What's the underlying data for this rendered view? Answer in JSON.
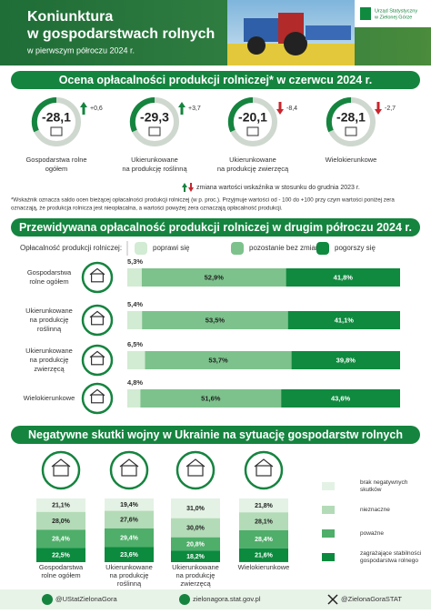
{
  "header": {
    "title_lines": [
      "Koniunktura",
      "w gospodarstwach rolnych"
    ],
    "subtitle": "w pierwszym półroczu 2024 r.",
    "logo_lines": [
      "Urząd Statystyczny",
      "w Zielonej Górze"
    ]
  },
  "assessment": {
    "title": "Ocena opłacalności produkcji rolniczej* w czerwcu 2024 r.",
    "items": [
      {
        "value": "-28,1",
        "change": "+0,6",
        "direction": "up",
        "label": [
          "Gospodarstwa rolne",
          "ogółem"
        ]
      },
      {
        "value": "-29,3",
        "change": "+3,7",
        "direction": "up",
        "label": [
          "Ukierunkowane",
          "na produkcję roślinną"
        ]
      },
      {
        "value": "-20,1",
        "change": "-8,4",
        "direction": "down",
        "label": [
          "Ukierunkowane",
          "na produkcję zwierzęcą"
        ]
      },
      {
        "value": "-28,1",
        "change": "-2,7",
        "direction": "down",
        "label": [
          "Wielokierunkowe"
        ]
      }
    ],
    "legend": "zmiana wartości wskaźnika w stosunku do grudnia 2023 r.",
    "footnote": [
      "*Wskaźnik oznacza saldo ocen bieżącej opłacalności produkcji rolniczej (w p. proc.). Przyjmuje wartości od - 100 do +100 przy czym wartości poniżej zera",
      "oznaczają, że produkcja rolnicza jest nieopłacalna, a wartości powyżej zera oznaczają opłacalność produkcji."
    ]
  },
  "forecast": {
    "title": "Przewidywana opłacalność produkcji rolniczej w drugim półroczu 2024 r.",
    "legend_title": "Opłacalność produkcji rolniczej:",
    "categories": [
      [
        "Gospodarstwa",
        "rolne ogółem"
      ],
      [
        "Ukierunkowane",
        "na produkcję",
        "roślinną"
      ],
      [
        "Ukierunkowane",
        "na produkcję",
        "zwierzęcą"
      ],
      [
        "Wielokierunkowe"
      ]
    ],
    "series": [
      {
        "name": "poprawi się",
        "color": "#d2ebd3",
        "values": [
          5.3,
          5.4,
          6.5,
          4.8
        ],
        "value_labels": [
          "5,3%",
          "5,4%",
          "6,5%",
          "4,8%"
        ]
      },
      {
        "name": "pozostanie bez zmian",
        "color": "#7dc28c",
        "values": [
          52.9,
          53.5,
          53.7,
          51.6
        ],
        "value_labels": [
          "52,9%",
          "53,5%",
          "53,7%",
          "51,6%"
        ]
      },
      {
        "name": "pogorszy się",
        "color": "#0f8a3f",
        "values": [
          41.8,
          41.1,
          39.8,
          43.6
        ],
        "value_labels": [
          "41,8%",
          "41,1%",
          "39,8%",
          "43,6%"
        ]
      }
    ]
  },
  "war": {
    "title": "Negatywne skutki wojny w Ukrainie na sytuację gospodarstw rolnych",
    "categories": [
      [
        "Gospodarstwa",
        "rolne ogółem"
      ],
      [
        "Ukierunkowane",
        "na produkcję",
        "roślinną"
      ],
      [
        "Ukierunkowane",
        "na produkcję",
        "zwierzęcą"
      ],
      [
        "Wielokierunkowe"
      ]
    ],
    "series": [
      {
        "name": [
          "brak negatywnych",
          "skutków"
        ],
        "color": "#e4f2e5",
        "values": [
          21.1,
          19.4,
          31.0,
          21.8
        ],
        "value_labels": [
          "21,1%",
          "19,4%",
          "31,0%",
          "21,8%"
        ]
      },
      {
        "name": [
          "nieznaczne"
        ],
        "color": "#b3dbb7",
        "values": [
          28.0,
          27.6,
          30.0,
          28.1
        ],
        "value_labels": [
          "28,0%",
          "27,6%",
          "30,0%",
          "28,1%"
        ]
      },
      {
        "name": [
          "poważne"
        ],
        "color": "#4fae6a",
        "values": [
          28.4,
          29.4,
          20.8,
          28.4
        ],
        "value_labels": [
          "28,4%",
          "29,4%",
          "20,8%",
          "28,4%"
        ]
      },
      {
        "name": [
          "zagrażające stabilności",
          "gospodarstwa rolnego"
        ],
        "color": "#0c8a3e",
        "values": [
          22.5,
          23.6,
          18.2,
          21.6
        ],
        "value_labels": [
          "22,5%",
          "23,6%",
          "18,2%",
          "21,6%"
        ]
      }
    ]
  },
  "footer": {
    "facebook": "@UStatZielonaGora",
    "website": "zielonagora.stat.gov.pl",
    "x": "@ZielonaGoraSTAT"
  }
}
